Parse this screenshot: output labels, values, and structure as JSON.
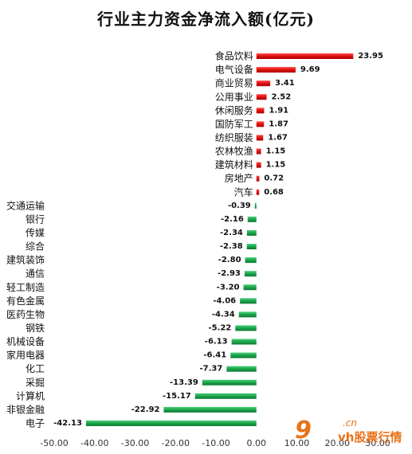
{
  "chart_data": {
    "type": "bar",
    "orientation": "horizontal",
    "title": "行业主力资金净流入额(亿元)",
    "categories": [
      "食品饮料",
      "电气设备",
      "商业贸易",
      "公用事业",
      "休闲服务",
      "国防军工",
      "纺织服装",
      "农林牧渔",
      "建筑材料",
      "房地产",
      "汽车",
      "交通运输",
      "银行",
      "传媒",
      "综合",
      "建筑装饰",
      "通信",
      "轻工制造",
      "有色金属",
      "医药生物",
      "钢铁",
      "机械设备",
      "家用电器",
      "化工",
      "采掘",
      "计算机",
      "非银金融",
      "电子"
    ],
    "values": [
      23.95,
      9.69,
      3.41,
      2.52,
      1.91,
      1.87,
      1.67,
      1.15,
      1.15,
      0.72,
      0.68,
      -0.39,
      -2.16,
      -2.34,
      -2.38,
      -2.8,
      -2.93,
      -3.2,
      -4.06,
      -4.34,
      -5.22,
      -6.13,
      -6.41,
      -7.37,
      -13.39,
      -15.17,
      -22.92,
      -42.13
    ],
    "data_labels": [
      "23.95",
      "9.69",
      "3.41",
      "2.52",
      "1.91",
      "1.87",
      "1.67",
      "1.15",
      "1.15",
      "0.72",
      "0.68",
      "-0.39",
      "-2.16",
      "-2.34",
      "-2.38",
      "-2.80",
      "-2.93",
      "-3.20",
      "-4.06",
      "-4.34",
      "-5.22",
      "-6.13",
      "-6.41",
      "-7.37",
      "-13.39",
      "-15.17",
      "-22.92",
      "-42.13"
    ],
    "xlim": [
      -50,
      30
    ],
    "x_ticks": [
      "-50.00",
      "-40.00",
      "-30.00",
      "-20.00",
      "-10.00",
      "0.00",
      "10.00",
      "20.00",
      "30.00"
    ],
    "x_tick_values": [
      -50,
      -40,
      -30,
      -20,
      -10,
      0,
      10,
      20,
      30
    ],
    "grid": false,
    "legend": "none",
    "colors": {
      "positive": "#e01010",
      "negative": "#1aa34a"
    }
  },
  "watermark": {
    "logo_number": "9",
    "logo_domain": ".cn",
    "logo_text": "vh股票行情"
  }
}
